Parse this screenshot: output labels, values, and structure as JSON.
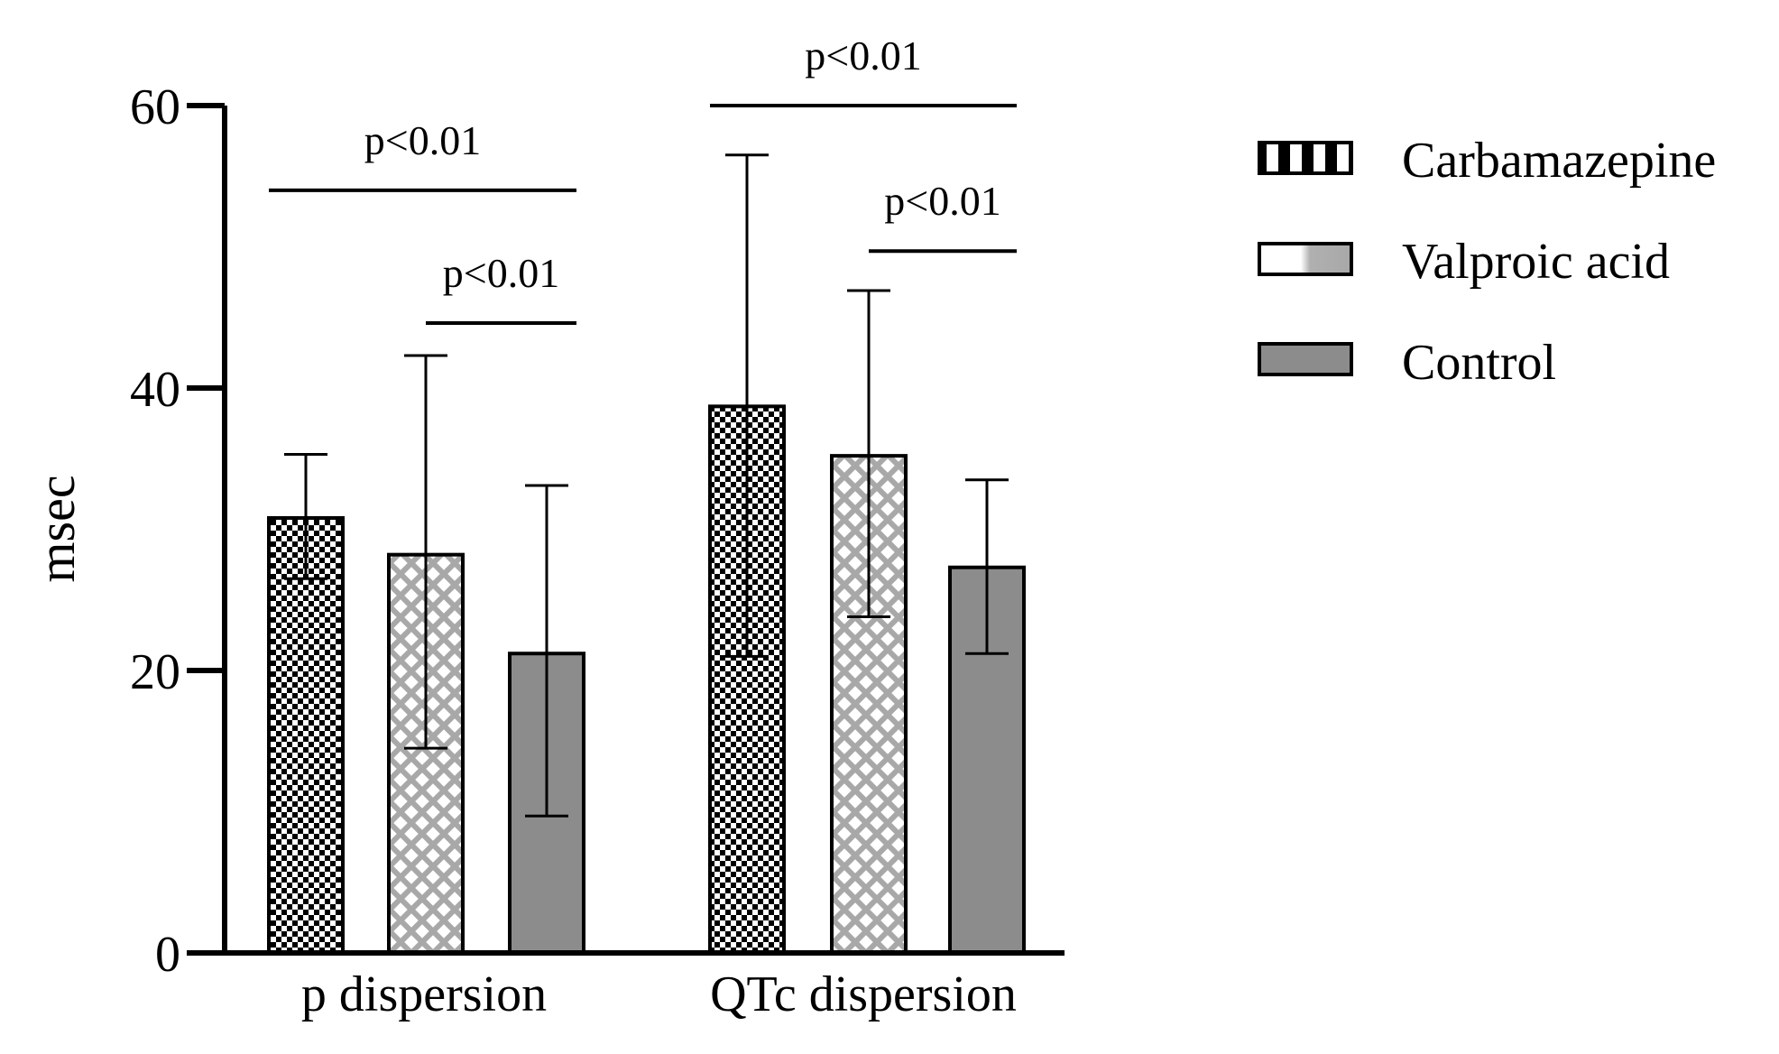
{
  "chart_data": {
    "type": "bar",
    "title": "",
    "xlabel": "",
    "ylabel": "msec",
    "ylim": [
      0,
      60
    ],
    "yticks": [
      0,
      20,
      40,
      60
    ],
    "categories": [
      "p dispersion",
      "QTc dispersion"
    ],
    "series": [
      {
        "name": "Carbamazepine",
        "pattern": "checker",
        "values": [
          30.8,
          38.7
        ],
        "err_low": [
          26.5,
          21.0
        ],
        "err_high": [
          35.3,
          56.5
        ]
      },
      {
        "name": "Valproic acid",
        "pattern": "lattice",
        "values": [
          28.2,
          35.2
        ],
        "err_low": [
          14.5,
          23.8
        ],
        "err_high": [
          42.3,
          46.9
        ]
      },
      {
        "name": "Control",
        "pattern": "solid",
        "values": [
          21.2,
          27.3
        ],
        "err_low": [
          9.7,
          21.2
        ],
        "err_high": [
          33.1,
          33.5
        ]
      }
    ],
    "significance": [
      {
        "label": "p<0.01",
        "category": 0,
        "from_series": 0,
        "to_series": 2,
        "y": 54.0
      },
      {
        "label": "p<0.01",
        "category": 0,
        "from_series": 1,
        "to_series": 2,
        "y": 44.6
      },
      {
        "label": "p<0.01",
        "category": 1,
        "from_series": 0,
        "to_series": 2,
        "y": 60.0
      },
      {
        "label": "p<0.01",
        "category": 1,
        "from_series": 1,
        "to_series": 2,
        "y": 49.7
      }
    ],
    "legend_position": "right",
    "colors": {
      "axis": "#000000",
      "control": "#8c8c8c",
      "lattice": "#a8a8a8",
      "checker": "#000000"
    }
  }
}
